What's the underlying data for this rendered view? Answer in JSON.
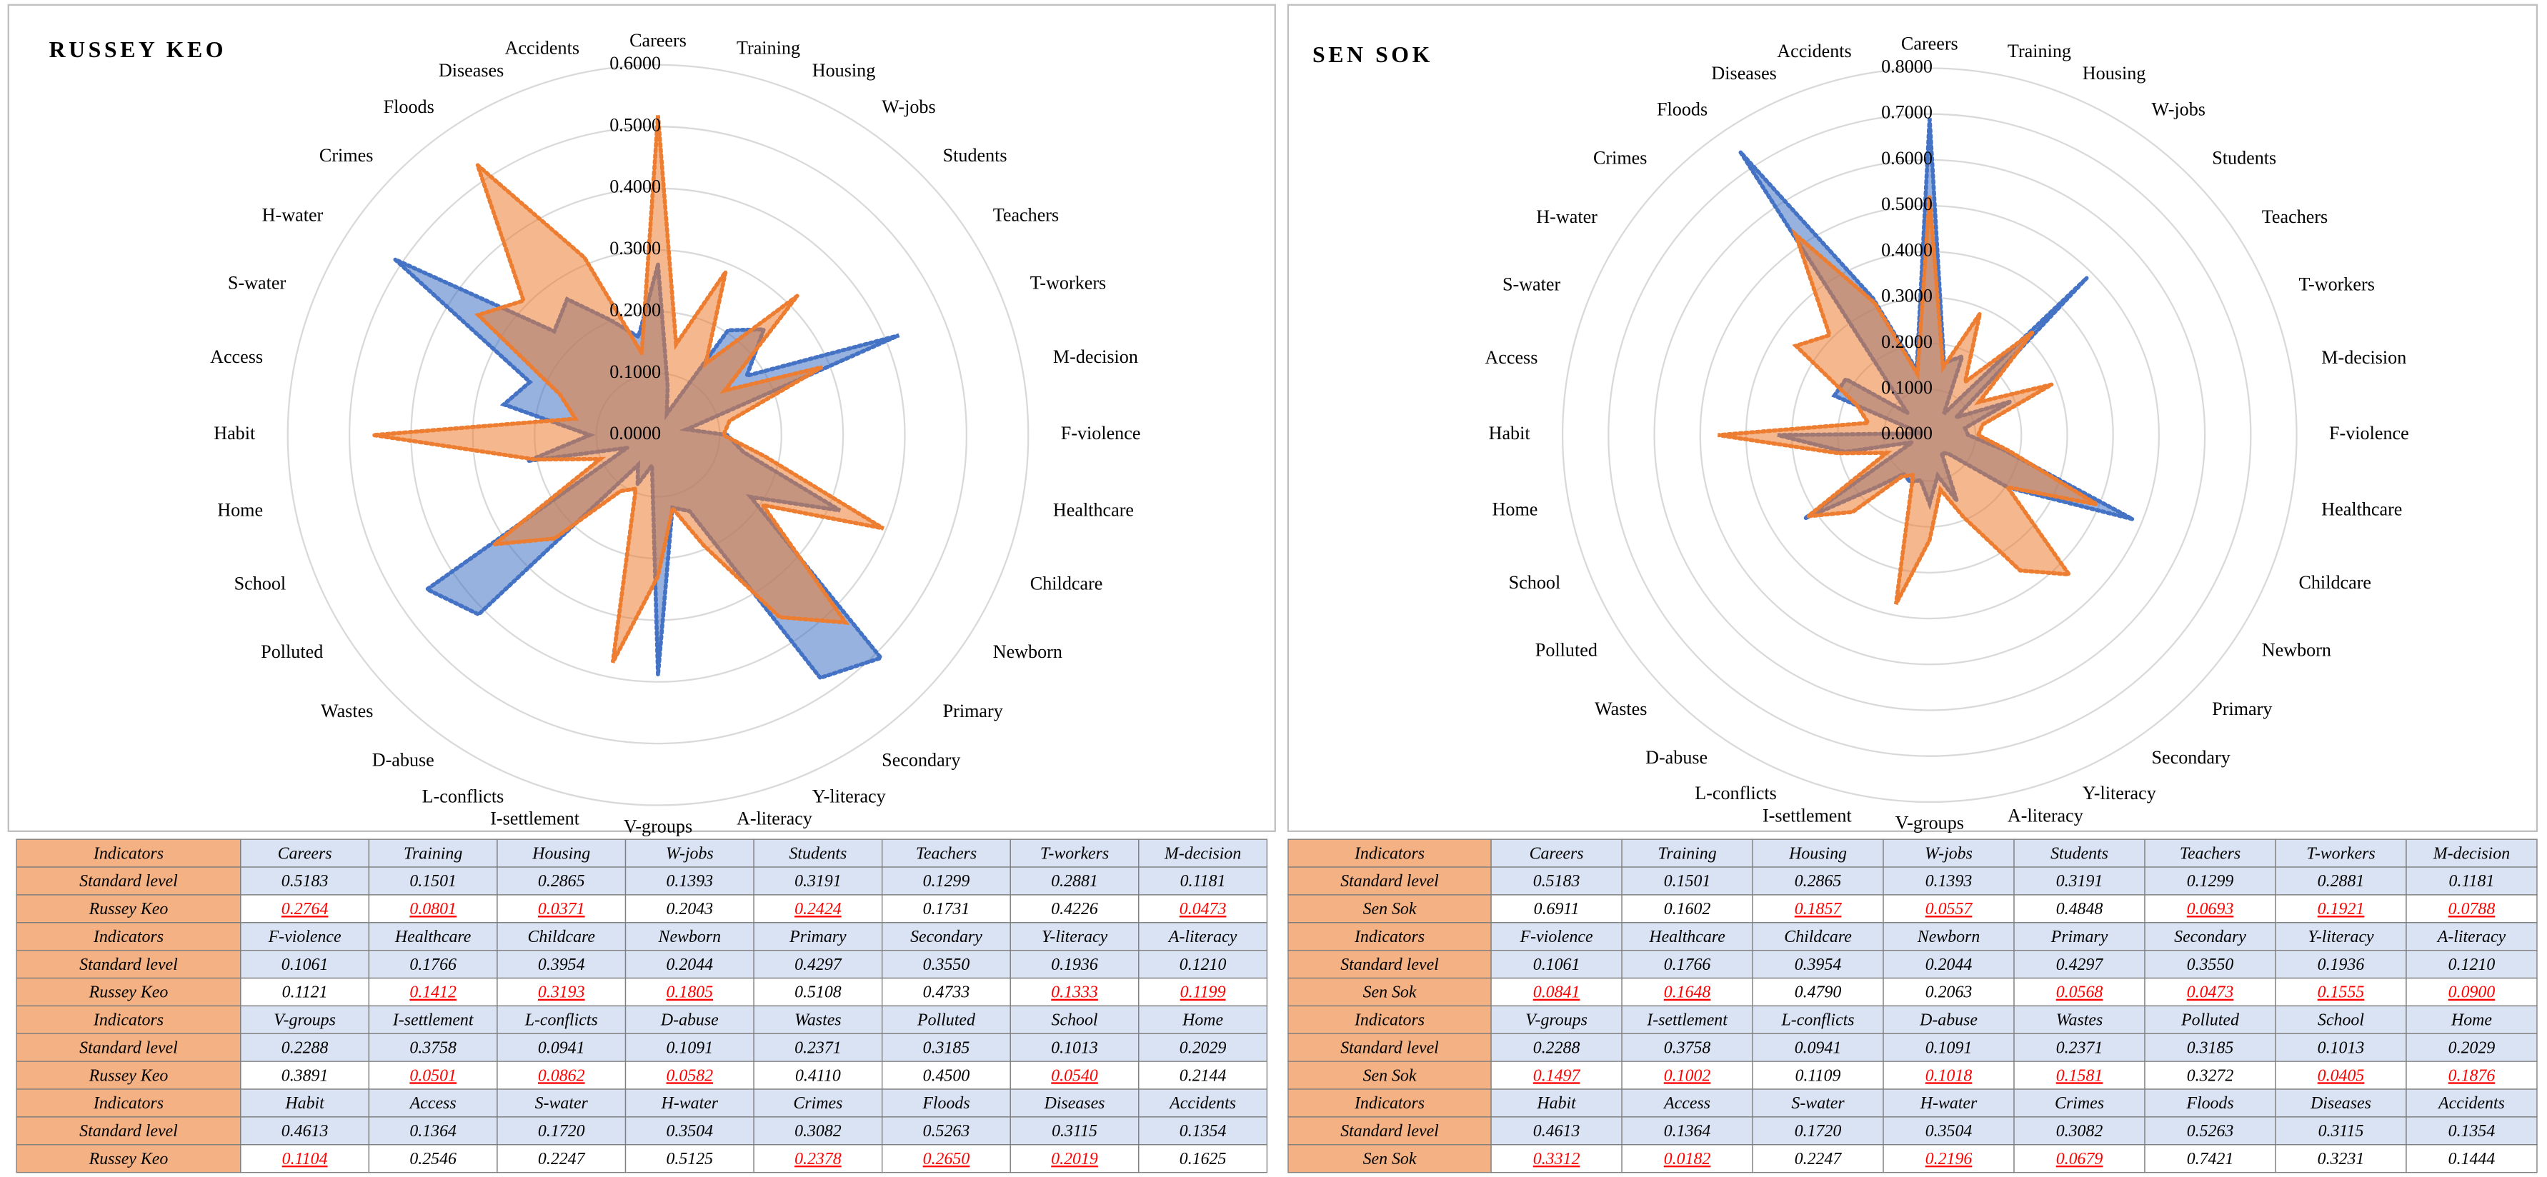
{
  "chart_data": [
    {
      "type": "radar",
      "title": "RUSSEY KEO",
      "categories": [
        "Careers",
        "Training",
        "Housing",
        "W-jobs",
        "Students",
        "Teachers",
        "T-workers",
        "M-decision",
        "F-violence",
        "Healthcare",
        "Childcare",
        "Newborn",
        "Primary",
        "Secondary",
        "Y-literacy",
        "A-literacy",
        "V-groups",
        "I-settlement",
        "L-conflicts",
        "D-abuse",
        "Wastes",
        "Polluted",
        "School",
        "Home",
        "Habit",
        "Access",
        "S-water",
        "H-water",
        "Crimes",
        "Floods",
        "Diseases",
        "Accidents"
      ],
      "series": [
        {
          "name": "Standard level",
          "color": "#ed7d31",
          "values": [
            0.5183,
            0.1501,
            0.2865,
            0.1393,
            0.3191,
            0.1299,
            0.2881,
            0.1181,
            0.1061,
            0.1766,
            0.3954,
            0.2044,
            0.4297,
            0.355,
            0.1936,
            0.121,
            0.2288,
            0.3758,
            0.0941,
            0.1091,
            0.2371,
            0.3185,
            0.1013,
            0.2029,
            0.4613,
            0.1364,
            0.172,
            0.3504,
            0.3082,
            0.5263,
            0.3115,
            0.1354
          ],
          "value_labels": [
            "0.5183",
            "0.1501",
            "0.2865",
            "0.1393",
            "0.3191",
            "0.1299",
            "0.2881",
            "0.1181",
            "0.1061",
            "0.1766",
            "0.3954",
            "0.2044",
            "0.4297",
            "0.3550",
            "0.1936",
            "0.1210",
            "0.2288",
            "0.3758",
            "0.0941",
            "0.1091",
            "0.2371",
            "0.3185",
            "0.1013",
            "0.2029",
            "0.4613",
            "0.1364",
            "0.1720",
            "0.3504",
            "0.3082",
            "0.5263",
            "0.3115",
            "0.1354"
          ]
        },
        {
          "name": "Russey Keo",
          "color": "#4472c4",
          "values": [
            0.2764,
            0.0801,
            0.0371,
            0.2043,
            0.2424,
            0.1731,
            0.4226,
            0.0473,
            0.1121,
            0.1412,
            0.3193,
            0.1805,
            0.5108,
            0.4733,
            0.1333,
            0.1199,
            0.3891,
            0.0501,
            0.0862,
            0.0582,
            0.411,
            0.45,
            0.054,
            0.2144,
            0.1104,
            0.2546,
            0.2247,
            0.5125,
            0.2378,
            0.265,
            0.2019,
            0.1625
          ],
          "value_labels": [
            "0.2764",
            "0.0801",
            "0.0371",
            "0.2043",
            "0.2424",
            "0.1731",
            "0.4226",
            "0.0473",
            "0.1121",
            "0.1412",
            "0.3193",
            "0.1805",
            "0.5108",
            "0.4733",
            "0.1333",
            "0.1199",
            "0.3891",
            "0.0501",
            "0.0862",
            "0.0582",
            "0.4110",
            "0.4500",
            "0.0540",
            "0.2144",
            "0.1104",
            "0.2546",
            "0.2247",
            "0.5125",
            "0.2378",
            "0.2650",
            "0.2019",
            "0.1625"
          ]
        }
      ],
      "ylim": [
        0,
        0.6
      ],
      "yticks": [
        {
          "value": 0,
          "label": "0.0000"
        },
        {
          "value": 0.1,
          "label": "0.1000"
        },
        {
          "value": 0.2,
          "label": "0.2000"
        },
        {
          "value": 0.3,
          "label": "0.3000"
        },
        {
          "value": 0.4,
          "label": "0.4000"
        },
        {
          "value": 0.5,
          "label": "0.5000"
        },
        {
          "value": 0.6,
          "label": "0.6000"
        }
      ],
      "grid": true,
      "table_label": "Indicators",
      "highlight_color": "#ff0000"
    },
    {
      "type": "radar",
      "title": "SEN SOK",
      "categories": [
        "Careers",
        "Training",
        "Housing",
        "W-jobs",
        "Students",
        "Teachers",
        "T-workers",
        "M-decision",
        "F-violence",
        "Healthcare",
        "Childcare",
        "Newborn",
        "Primary",
        "Secondary",
        "Y-literacy",
        "A-literacy",
        "V-groups",
        "I-settlement",
        "L-conflicts",
        "D-abuse",
        "Wastes",
        "Polluted",
        "School",
        "Home",
        "Habit",
        "Access",
        "S-water",
        "H-water",
        "Crimes",
        "Floods",
        "Diseases",
        "Accidents"
      ],
      "series": [
        {
          "name": "Standard level",
          "color": "#ed7d31",
          "values": [
            0.5183,
            0.1501,
            0.2865,
            0.1393,
            0.3191,
            0.1299,
            0.2881,
            0.1181,
            0.1061,
            0.1766,
            0.3954,
            0.2044,
            0.4297,
            0.355,
            0.1936,
            0.121,
            0.2288,
            0.3758,
            0.0941,
            0.1091,
            0.2371,
            0.3185,
            0.1013,
            0.2029,
            0.4613,
            0.1364,
            0.172,
            0.3504,
            0.3082,
            0.5263,
            0.3115,
            0.1354
          ],
          "value_labels": [
            "0.5183",
            "0.1501",
            "0.2865",
            "0.1393",
            "0.3191",
            "0.1299",
            "0.2881",
            "0.1181",
            "0.1061",
            "0.1766",
            "0.3954",
            "0.2044",
            "0.4297",
            "0.3550",
            "0.1936",
            "0.1210",
            "0.2288",
            "0.3758",
            "0.0941",
            "0.1091",
            "0.2371",
            "0.3185",
            "0.1013",
            "0.2029",
            "0.4613",
            "0.1364",
            "0.1720",
            "0.3504",
            "0.3082",
            "0.5263",
            "0.3115",
            "0.1354"
          ]
        },
        {
          "name": "Sen Sok",
          "color": "#4472c4",
          "values": [
            0.6911,
            0.1602,
            0.1857,
            0.0557,
            0.4848,
            0.0693,
            0.1921,
            0.0788,
            0.0841,
            0.1648,
            0.479,
            0.2063,
            0.0568,
            0.0473,
            0.1555,
            0.09,
            0.1497,
            0.1002,
            0.1109,
            0.1018,
            0.1581,
            0.3272,
            0.0405,
            0.1876,
            0.3312,
            0.0182,
            0.2247,
            0.2196,
            0.0679,
            0.7421,
            0.3231,
            0.1444
          ],
          "value_labels": [
            "0.6911",
            "0.1602",
            "0.1857",
            "0.0557",
            "0.4848",
            "0.0693",
            "0.1921",
            "0.0788",
            "0.0841",
            "0.1648",
            "0.4790",
            "0.2063",
            "0.0568",
            "0.0473",
            "0.1555",
            "0.0900",
            "0.1497",
            "0.1002",
            "0.1109",
            "0.1018",
            "0.1581",
            "0.3272",
            "0.0405",
            "0.1876",
            "0.3312",
            "0.0182",
            "0.2247",
            "0.2196",
            "0.0679",
            "0.7421",
            "0.3231",
            "0.1444"
          ]
        }
      ],
      "ylim": [
        0,
        0.8
      ],
      "yticks": [
        {
          "value": 0,
          "label": "0.0000"
        },
        {
          "value": 0.1,
          "label": "0.1000"
        },
        {
          "value": 0.2,
          "label": "0.2000"
        },
        {
          "value": 0.3,
          "label": "0.3000"
        },
        {
          "value": 0.4,
          "label": "0.4000"
        },
        {
          "value": 0.5,
          "label": "0.5000"
        },
        {
          "value": 0.6,
          "label": "0.6000"
        },
        {
          "value": 0.7,
          "label": "0.7000"
        },
        {
          "value": 0.8,
          "label": "0.8000"
        }
      ],
      "grid": true,
      "table_label": "Indicators",
      "highlight_color": "#ff0000"
    }
  ]
}
